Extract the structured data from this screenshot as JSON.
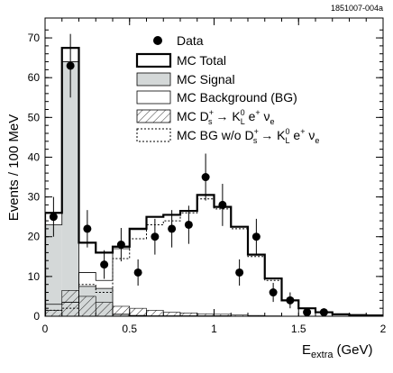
{
  "figure_code": "1851007-004a",
  "chart_data": {
    "type": "histogram",
    "xlabel_main": "E",
    "xlabel_sub": "extra",
    "xlabel_unit": "(GeV)",
    "ylabel": "Events / 100 MeV",
    "xlim": [
      0,
      2
    ],
    "ylim": [
      0,
      75
    ],
    "x_ticks": [
      0,
      0.5,
      1,
      1.5,
      2
    ],
    "x_tick_labels": [
      "0",
      "0.5",
      "1",
      "1.5",
      "2"
    ],
    "y_ticks": [
      0,
      10,
      20,
      30,
      40,
      50,
      60,
      70
    ],
    "y_tick_labels": [
      "0",
      "10",
      "20",
      "30",
      "40",
      "50",
      "60",
      "70"
    ],
    "bin_edges": [
      0,
      0.1,
      0.2,
      0.3,
      0.4,
      0.5,
      0.6,
      0.7,
      0.8,
      0.9,
      1.0,
      1.1,
      1.2,
      1.3,
      1.4,
      1.5,
      1.6,
      1.7,
      1.8,
      1.9,
      2.0
    ],
    "series": [
      {
        "name": "MC Total",
        "values": [
          26,
          67.5,
          18.5,
          16,
          17.5,
          22,
          25,
          25.5,
          26.5,
          30.5,
          27.5,
          22.5,
          15.5,
          9.5,
          4,
          2,
          1,
          0.5,
          0.3,
          0.2
        ]
      },
      {
        "name": "MC Signal",
        "values": [
          23,
          64,
          7.5,
          7,
          0.5,
          0.2,
          0.1,
          0.1,
          0.1,
          0.1,
          0.1,
          0,
          0,
          0,
          0,
          0,
          0,
          0,
          0,
          0
        ]
      },
      {
        "name": "MC Background (BG)",
        "values": [
          3,
          3.5,
          11,
          9,
          17,
          21.8,
          24.9,
          25.4,
          26.4,
          30.4,
          27.4,
          22.5,
          15.5,
          9.5,
          4,
          2,
          1,
          0.5,
          0.3,
          0.2
        ]
      },
      {
        "name": "MC D_s^+ → K_L^0 e^+ ν_e",
        "values": [
          1.5,
          6.5,
          5,
          3.5,
          2.5,
          2,
          1.5,
          1,
          0.8,
          0.6,
          0.5,
          0.3,
          0.2,
          0.1,
          0,
          0,
          0,
          0,
          0,
          0
        ]
      },
      {
        "name": "MC BG w/o D_s^+ → K_L^0 e^+ ν_e",
        "values": [
          1.5,
          2,
          8,
          6,
          14.5,
          19.5,
          23,
          24,
          26,
          29.5,
          27,
          22,
          15,
          9,
          4,
          2,
          1,
          0.5,
          0.3,
          0.2
        ]
      }
    ],
    "data_points": {
      "name": "Data",
      "x": [
        0.05,
        0.15,
        0.25,
        0.35,
        0.45,
        0.55,
        0.65,
        0.75,
        0.85,
        0.95,
        1.05,
        1.15,
        1.25,
        1.35,
        1.45,
        1.55,
        1.65
      ],
      "y": [
        25,
        63,
        22,
        13,
        18,
        11,
        20,
        22,
        23,
        35,
        28,
        11,
        20,
        6,
        4,
        1,
        1
      ],
      "yerr": [
        5,
        8,
        4.7,
        3.6,
        4.2,
        3.3,
        4.5,
        4.7,
        4.8,
        5.9,
        5.3,
        3.3,
        4.5,
        2.4,
        2,
        1,
        1
      ]
    },
    "legend": {
      "position": "top-right",
      "entries": [
        {
          "key": "data",
          "label": "Data"
        },
        {
          "key": "total",
          "label": "MC Total"
        },
        {
          "key": "signal",
          "label": "MC Signal"
        },
        {
          "key": "bg",
          "label": "MC Background (BG)"
        },
        {
          "key": "ds",
          "label_prefix": "MC D",
          "label_sup1": "+",
          "label_sub1": "s",
          "label_mid": " → K",
          "label_sup2": "0",
          "label_sub2": "L",
          "label_end": " e",
          "label_sup3": "+",
          "label_tail": " ν",
          "label_sub3": "e"
        },
        {
          "key": "bgwo",
          "label_prefix": "MC BG w/o D",
          "label_sup1": "+",
          "label_sub1": "s",
          "label_mid": " → K",
          "label_sup2": "0",
          "label_sub2": "L",
          "label_end": " e",
          "label_sup3": "+",
          "label_tail": " ν",
          "label_sub3": "e"
        }
      ]
    },
    "colors": {
      "signal_fill": "#d4d8d8",
      "line": "#000000",
      "dotted": "#000000"
    }
  }
}
